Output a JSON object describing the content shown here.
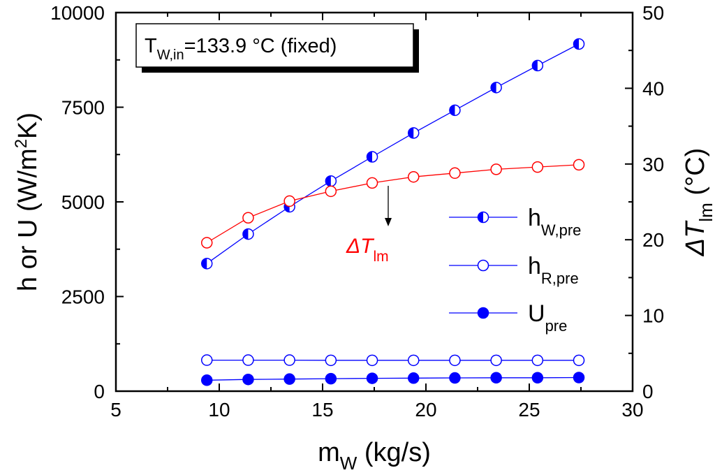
{
  "chart_data": {
    "type": "line",
    "xlabel": {
      "main": "m",
      "sub": "W",
      "rest": " (kg/s)"
    },
    "ylabel_left": {
      "pre": "h or U (W/m",
      "sup": "2",
      "post": "K)"
    },
    "ylabel_right": {
      "main": "ΔT",
      "sub": "lm",
      "rest": " (°C)"
    },
    "xlim": [
      5,
      30
    ],
    "ylim_left": [
      0,
      10000
    ],
    "ylim_right": [
      0,
      50
    ],
    "xticks": [
      5,
      10,
      15,
      20,
      25,
      30
    ],
    "yticks_left": [
      0,
      2500,
      5000,
      7500,
      10000
    ],
    "yticks_right": [
      0,
      10,
      20,
      30,
      40,
      50
    ],
    "annotation_box": {
      "main": "T",
      "sub": "W,in",
      "rest": "=133.9 °C (fixed)"
    },
    "curve_annotation": {
      "main": "ΔT",
      "sub": "lm"
    },
    "x": [
      9.4,
      11.4,
      13.4,
      15.4,
      17.4,
      19.4,
      21.4,
      23.4,
      25.4,
      27.4
    ],
    "series": [
      {
        "name": {
          "main": "h",
          "sub": "W,pre"
        },
        "axis": "left",
        "marker": "half",
        "color": "#0000ff",
        "values": [
          3370,
          4150,
          4870,
          5550,
          6190,
          6820,
          7420,
          8020,
          8600,
          9170
        ],
        "in_legend": true
      },
      {
        "name": {
          "main": "h",
          "sub": "R,pre"
        },
        "axis": "left",
        "marker": "open",
        "color": "#0000ff",
        "values": [
          820,
          820,
          820,
          815,
          815,
          815,
          815,
          815,
          815,
          815
        ],
        "in_legend": true
      },
      {
        "name": {
          "main": "U",
          "sub": "pre"
        },
        "axis": "left",
        "marker": "filled",
        "color": "#0000ff",
        "values": [
          290,
          310,
          320,
          330,
          340,
          345,
          350,
          355,
          355,
          360
        ],
        "in_legend": true
      },
      {
        "name": {
          "main": "",
          "sub": ""
        },
        "axis": "right",
        "marker": "open",
        "color": "#ff0000",
        "values": [
          19.6,
          22.9,
          25.1,
          26.4,
          27.5,
          28.3,
          28.8,
          29.3,
          29.6,
          29.9
        ],
        "in_legend": false
      }
    ],
    "legend_position": "center-right"
  }
}
